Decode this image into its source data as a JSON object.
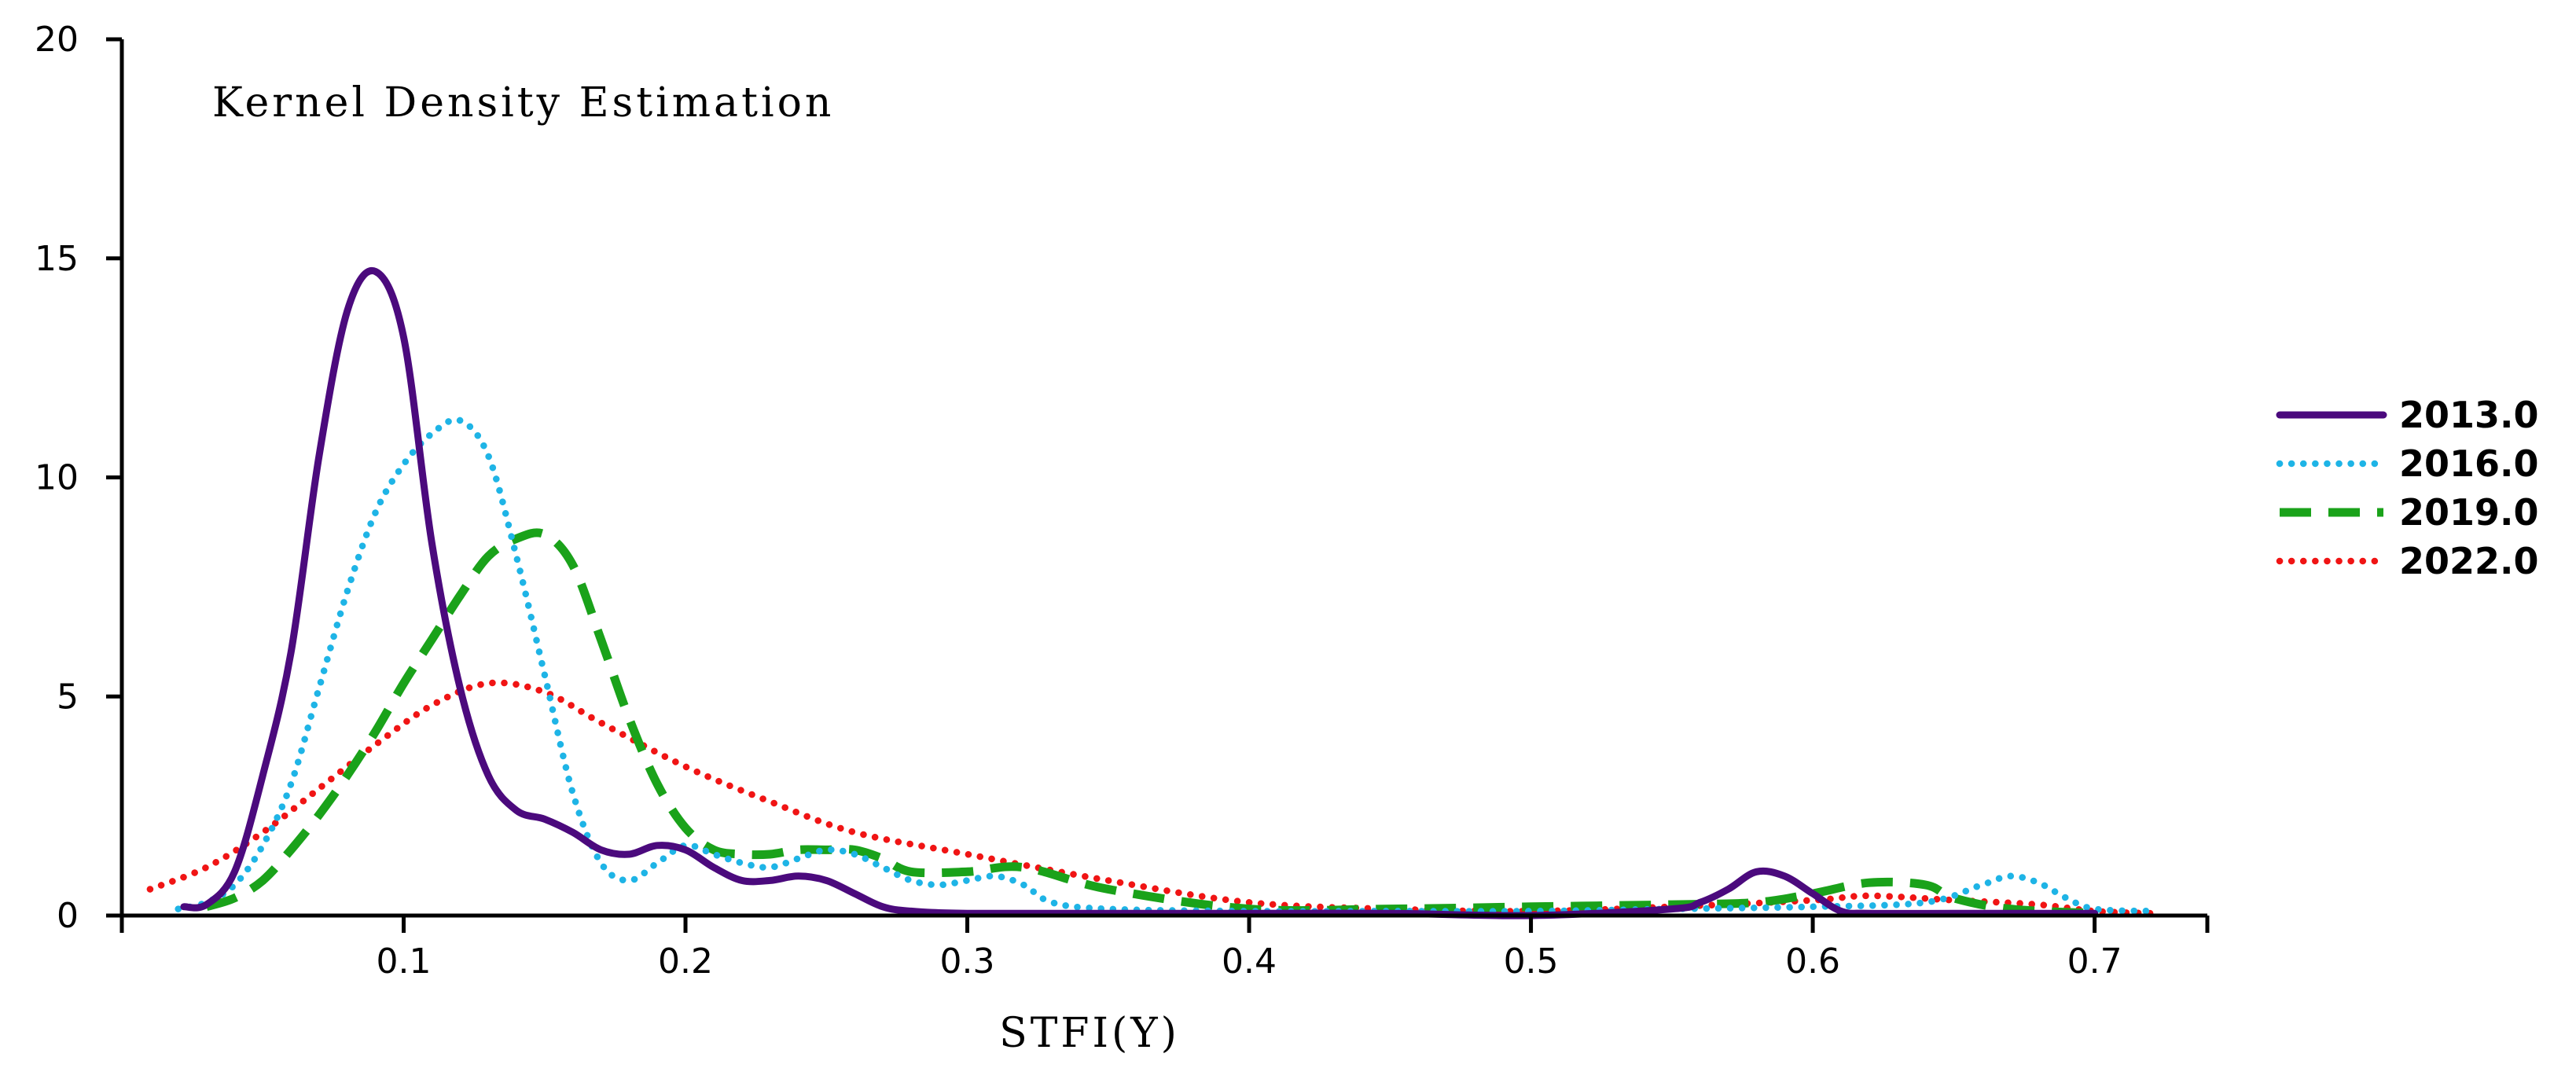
{
  "chart_data": {
    "type": "line",
    "title": "Kernel Density Estimation",
    "xlabel": "STFI(Y)",
    "ylabel": "",
    "xlim": [
      0.0,
      0.74
    ],
    "ylim": [
      0,
      20
    ],
    "xticks": [
      0.1,
      0.2,
      0.3,
      0.4,
      0.5,
      0.6,
      0.7
    ],
    "xtick_labels": [
      "0.1",
      "0.2",
      "0.3",
      "0.4",
      "0.5",
      "0.6",
      "0.7"
    ],
    "yticks": [
      0,
      5,
      10,
      15,
      20
    ],
    "ytick_labels": [
      "0",
      "5",
      "10",
      "15",
      "20"
    ],
    "grid": false,
    "legend_position": "right",
    "series": [
      {
        "name": "2013.0",
        "color": "#4B0A7D",
        "style": "solid",
        "x": [
          0.022,
          0.03,
          0.04,
          0.05,
          0.06,
          0.07,
          0.08,
          0.09,
          0.1,
          0.11,
          0.12,
          0.13,
          0.14,
          0.15,
          0.16,
          0.17,
          0.18,
          0.19,
          0.2,
          0.21,
          0.22,
          0.23,
          0.24,
          0.25,
          0.26,
          0.27,
          0.28,
          0.3,
          0.35,
          0.4,
          0.45,
          0.5,
          0.55,
          0.56,
          0.57,
          0.58,
          0.59,
          0.6,
          0.61,
          0.62,
          0.65,
          0.7
        ],
        "y": [
          0.2,
          0.25,
          1.0,
          3.2,
          6.0,
          10.5,
          13.8,
          14.7,
          13.2,
          8.5,
          5.2,
          3.2,
          2.4,
          2.2,
          1.9,
          1.5,
          1.4,
          1.6,
          1.5,
          1.1,
          0.8,
          0.8,
          0.9,
          0.8,
          0.5,
          0.2,
          0.1,
          0.05,
          0.05,
          0.05,
          0.05,
          0.0,
          0.15,
          0.3,
          0.6,
          1.0,
          0.9,
          0.5,
          0.1,
          0.05,
          0.05,
          0.05
        ]
      },
      {
        "name": "2016.0",
        "color": "#1EB4E6",
        "style": "dotted",
        "x": [
          0.02,
          0.03,
          0.04,
          0.05,
          0.06,
          0.07,
          0.08,
          0.09,
          0.1,
          0.11,
          0.12,
          0.13,
          0.14,
          0.15,
          0.16,
          0.17,
          0.18,
          0.19,
          0.2,
          0.21,
          0.22,
          0.23,
          0.24,
          0.25,
          0.26,
          0.27,
          0.28,
          0.29,
          0.3,
          0.31,
          0.32,
          0.33,
          0.35,
          0.4,
          0.45,
          0.5,
          0.55,
          0.6,
          0.64,
          0.66,
          0.67,
          0.68,
          0.69,
          0.7,
          0.72
        ],
        "y": [
          0.15,
          0.3,
          0.7,
          1.6,
          3.0,
          5.2,
          7.4,
          9.2,
          10.3,
          11.0,
          11.3,
          10.5,
          8.2,
          5.5,
          2.8,
          1.2,
          0.8,
          1.2,
          1.6,
          1.4,
          1.2,
          1.1,
          1.3,
          1.5,
          1.4,
          1.1,
          0.8,
          0.7,
          0.8,
          0.9,
          0.7,
          0.3,
          0.15,
          0.1,
          0.1,
          0.1,
          0.15,
          0.2,
          0.3,
          0.7,
          0.9,
          0.75,
          0.4,
          0.15,
          0.1
        ]
      },
      {
        "name": "2019.0",
        "color": "#1AA21A",
        "style": "dashed",
        "x": [
          0.03,
          0.04,
          0.05,
          0.06,
          0.07,
          0.08,
          0.09,
          0.1,
          0.11,
          0.12,
          0.13,
          0.14,
          0.15,
          0.16,
          0.17,
          0.18,
          0.19,
          0.2,
          0.21,
          0.22,
          0.23,
          0.24,
          0.25,
          0.26,
          0.27,
          0.28,
          0.3,
          0.32,
          0.35,
          0.4,
          0.45,
          0.5,
          0.55,
          0.58,
          0.6,
          0.62,
          0.64,
          0.65,
          0.67,
          0.7
        ],
        "y": [
          0.2,
          0.4,
          0.8,
          1.5,
          2.3,
          3.2,
          4.2,
          5.3,
          6.3,
          7.3,
          8.2,
          8.6,
          8.7,
          8.0,
          6.3,
          4.5,
          3.0,
          2.0,
          1.5,
          1.4,
          1.4,
          1.5,
          1.5,
          1.5,
          1.3,
          1.0,
          1.0,
          1.1,
          0.6,
          0.15,
          0.15,
          0.2,
          0.25,
          0.3,
          0.5,
          0.75,
          0.7,
          0.4,
          0.15,
          0.05
        ]
      },
      {
        "name": "2022.0",
        "color": "#F01414",
        "style": "dotted",
        "x": [
          0.01,
          0.03,
          0.05,
          0.07,
          0.09,
          0.11,
          0.13,
          0.15,
          0.17,
          0.2,
          0.23,
          0.26,
          0.3,
          0.35,
          0.4,
          0.45,
          0.5,
          0.55,
          0.6,
          0.62,
          0.65,
          0.68,
          0.7,
          0.72
        ],
        "y": [
          0.6,
          1.1,
          1.9,
          2.9,
          3.9,
          4.8,
          5.3,
          5.1,
          4.4,
          3.4,
          2.6,
          1.9,
          1.4,
          0.8,
          0.3,
          0.15,
          0.1,
          0.2,
          0.35,
          0.45,
          0.35,
          0.25,
          0.1,
          0.05
        ]
      }
    ]
  }
}
